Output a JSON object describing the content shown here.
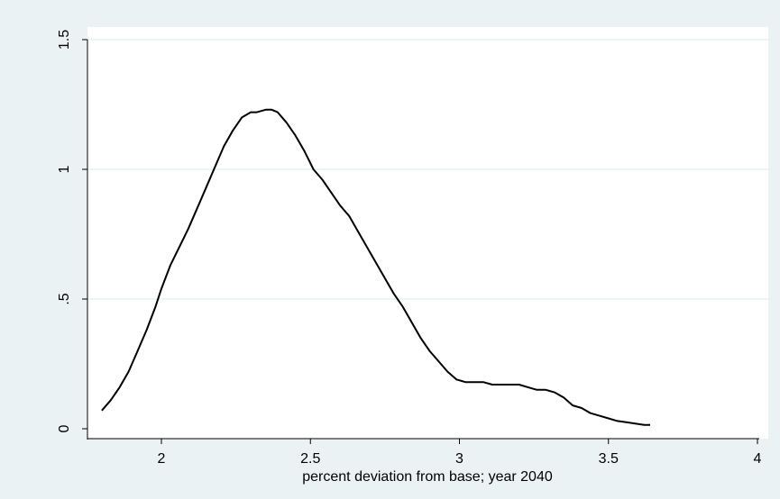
{
  "chart_data": {
    "type": "line",
    "title": "",
    "xlabel": "percent deviation from base; year 2040",
    "ylabel": "",
    "xlim": [
      1.75,
      4.0
    ],
    "ylim": [
      0,
      1.5
    ],
    "x_ticks": [
      2,
      2.5,
      3,
      3.5,
      4
    ],
    "x_tick_labels": [
      "2",
      "2.5",
      "3",
      "3.5",
      "4"
    ],
    "y_ticks": [
      0,
      0.5,
      1,
      1.5
    ],
    "y_tick_labels": [
      "0",
      ".5",
      "1",
      "1.5"
    ],
    "grid": "horizontal",
    "legend": "none",
    "colors": {
      "background": "#eaf2f3",
      "plot_area": "#ffffff",
      "line": "#000000",
      "grid": "#eaf2f3",
      "axis": "#000000"
    },
    "series": [
      {
        "values_x": [
          1.8,
          1.83,
          1.86,
          1.89,
          1.92,
          1.95,
          1.98,
          2.0,
          2.03,
          2.06,
          2.09,
          2.12,
          2.15,
          2.18,
          2.21,
          2.24,
          2.27,
          2.3,
          2.32,
          2.35,
          2.37,
          2.39,
          2.42,
          2.45,
          2.48,
          2.51,
          2.54,
          2.57,
          2.6,
          2.63,
          2.66,
          2.69,
          2.72,
          2.75,
          2.78,
          2.81,
          2.84,
          2.87,
          2.9,
          2.93,
          2.96,
          2.99,
          3.02,
          3.05,
          3.08,
          3.11,
          3.14,
          3.17,
          3.2,
          3.23,
          3.26,
          3.29,
          3.32,
          3.35,
          3.38,
          3.41,
          3.44,
          3.47,
          3.5,
          3.53,
          3.56,
          3.59,
          3.62,
          3.64
        ],
        "values_y": [
          0.07,
          0.11,
          0.16,
          0.22,
          0.3,
          0.38,
          0.47,
          0.54,
          0.63,
          0.7,
          0.77,
          0.85,
          0.93,
          1.01,
          1.09,
          1.15,
          1.2,
          1.22,
          1.22,
          1.23,
          1.23,
          1.22,
          1.18,
          1.13,
          1.07,
          1.0,
          0.96,
          0.91,
          0.86,
          0.82,
          0.76,
          0.7,
          0.64,
          0.58,
          0.52,
          0.47,
          0.41,
          0.35,
          0.3,
          0.26,
          0.22,
          0.19,
          0.18,
          0.18,
          0.18,
          0.17,
          0.17,
          0.17,
          0.17,
          0.16,
          0.15,
          0.15,
          0.14,
          0.12,
          0.09,
          0.08,
          0.06,
          0.05,
          0.04,
          0.03,
          0.025,
          0.02,
          0.015,
          0.015
        ]
      }
    ]
  }
}
